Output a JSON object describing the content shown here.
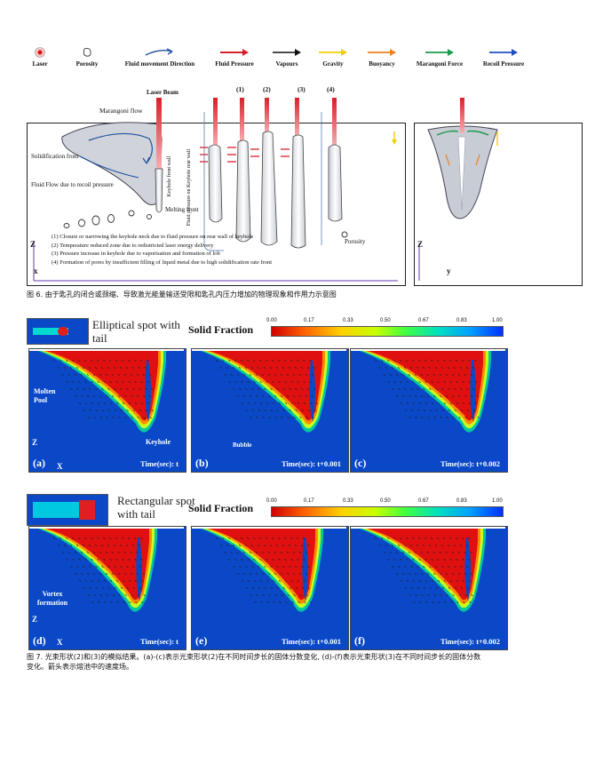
{
  "legend": {
    "items": [
      {
        "key": "laser",
        "label": "Laser"
      },
      {
        "key": "porosity",
        "label": "Porosity"
      },
      {
        "key": "fluid",
        "label": "Fluid movement Direction"
      },
      {
        "key": "pressure",
        "label": "Fluid Pressure"
      },
      {
        "key": "vapours",
        "label": "Vapours"
      },
      {
        "key": "gravity",
        "label": "Gravity"
      },
      {
        "key": "buoyancy",
        "label": "Buoyancy"
      },
      {
        "key": "marangoni",
        "label": "Marangoni Force"
      },
      {
        "key": "recoil",
        "label": "Recoil Pressure"
      }
    ],
    "colors": {
      "pressure": "#d8202a",
      "vapours": "#111111",
      "gravity": "#f0d000",
      "buoyancy": "#f08020",
      "marangoni": "#1a9a4a",
      "recoil": "#2050c0",
      "fluid": "#2050a0"
    }
  },
  "fig6": {
    "laser_beam": "Laser Beam",
    "marangoni_flow": "Marangoni flow",
    "solidification_front": "Solidification front",
    "fluid_flow": "Fluid Flow due to recoil pressure",
    "keyhole_front_wall": "Keyhole front wall",
    "melting_front": "Melting front",
    "fluid_pressure_rear": "Fluid pressure on Keyhole rear wall",
    "porosity": "Porosity",
    "stages": [
      "(1)",
      "(2)",
      "(3)",
      "(4)"
    ],
    "notes": [
      "(1) Closure or narrowing the keyhole neck due to fluid pressure on rear wall of keyhole",
      "(2) Temperature reduced  zone due to redistricted laser energy delivery",
      "(3) Pressure increase in keyhole due to vaporisation and formation of lob",
      "(4) Formation of pores by insufficient filling of liquid metal due to high solidification rate  front"
    ],
    "axis_z": "Z",
    "axis_x": "x",
    "axis_y": "y",
    "caption": "图 6. 由于匙孔的闭合或颈缩、导致激光能量输送受限和匙孔内压力增加的物理现象和作用力示意图"
  },
  "fig7": {
    "sf_title": "Solid Fraction",
    "sf_ticks": [
      "0.00",
      "0.17",
      "0.33",
      "0.50",
      "0.67",
      "0.83",
      "1.00"
    ],
    "spot1": "Elliptical spot with tail",
    "spot2": "Rectangular spot with tail",
    "row1": [
      {
        "letter": "(a)",
        "time": "Time(sec): t"
      },
      {
        "letter": "(b)",
        "time": "Time(sec): t+0.001"
      },
      {
        "letter": "(c)",
        "time": "Time(sec): t+0.002"
      }
    ],
    "row2": [
      {
        "letter": "(d)",
        "time": "Time(sec): t"
      },
      {
        "letter": "(e)",
        "time": "Time(sec): t+0.001"
      },
      {
        "letter": "(f)",
        "time": "Time(sec): t+0.002"
      }
    ],
    "molten_pool": "Molten Pool",
    "keyhole": "Keyhole",
    "bubble": "Bubble",
    "vortex": "Vortex formation",
    "axis_z": "Z",
    "axis_x": "X",
    "caption_line1": "图 7. 光束形状(2)和(3)的模拟结果。(a)-(c)表示光束形状(2)在不同时间步长的固体分数变化, (d)-(f)表示光束形状(3)在不同时间步长的固体分数",
    "caption_line2": "变化。箭头表示熔池中的速度场。"
  }
}
